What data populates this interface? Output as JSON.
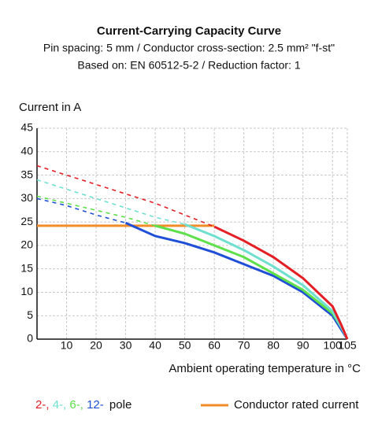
{
  "chart_data": {
    "type": "line",
    "title": "Current-Carrying Capacity Curve",
    "subtitle": [
      "Pin spacing: 5 mm / Conductor cross-section: 2.5 mm² \"f-st\"",
      "Based on: EN 60512-5-2 / Reduction factor: 1"
    ],
    "y_label": "Current in A",
    "x_label": "Ambient operating temperature in °C",
    "x": [
      0,
      10,
      20,
      30,
      40,
      50,
      60,
      70,
      80,
      90,
      100,
      103,
      105
    ],
    "xlim": [
      0,
      105
    ],
    "xticks": [
      10,
      20,
      30,
      40,
      50,
      60,
      70,
      80,
      90,
      100,
      105
    ],
    "ylim": [
      0,
      45
    ],
    "yticks": [
      0,
      5,
      10,
      15,
      20,
      25,
      30,
      35,
      40,
      45
    ],
    "grid": true,
    "legend_suffix": "pole",
    "series": [
      {
        "name": "2-,",
        "color": "#e31e24",
        "values": [
          null,
          null,
          null,
          null,
          null,
          null,
          24,
          21,
          17.5,
          13,
          7,
          3,
          0
        ],
        "extrapolated_values": [
          37,
          35,
          33,
          31,
          29,
          26.5,
          24,
          null,
          null,
          null,
          null,
          null,
          null
        ]
      },
      {
        "name": "4-,",
        "color": "#6fe0d0",
        "values": [
          null,
          null,
          null,
          null,
          null,
          24.5,
          22,
          19,
          15.5,
          11.5,
          6,
          2.5,
          0
        ],
        "extrapolated_values": [
          34,
          32,
          30,
          28,
          26,
          24.5,
          null,
          null,
          null,
          null,
          null,
          null,
          null
        ]
      },
      {
        "name": "6-,",
        "color": "#5ee04a",
        "values": [
          null,
          null,
          null,
          null,
          24.2,
          22.5,
          20,
          17.5,
          14,
          10.5,
          5.5,
          2.5,
          0
        ],
        "extrapolated_values": [
          30.5,
          29,
          27.5,
          26,
          24.2,
          null,
          null,
          null,
          null,
          null,
          null,
          null,
          null
        ]
      },
      {
        "name": "12-",
        "color": "#1f4fd6",
        "values": [
          null,
          null,
          null,
          24.8,
          22,
          20.5,
          18.5,
          16,
          13.5,
          10,
          5,
          2,
          0
        ],
        "extrapolated_values": [
          30,
          28.5,
          26.5,
          24.8,
          null,
          null,
          null,
          null,
          null,
          null,
          null,
          null,
          null
        ]
      },
      {
        "name": "Conductor rated current",
        "color": "#f28c28",
        "values": [
          24.2,
          24.2,
          24.2,
          24.2,
          24.2,
          24.2,
          24.2,
          null,
          null,
          null,
          null,
          null,
          null
        ]
      }
    ]
  }
}
